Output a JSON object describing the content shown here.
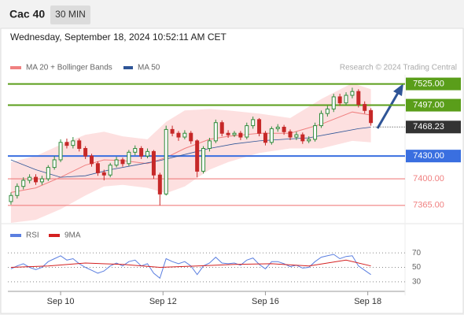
{
  "header": {
    "symbol": "Cac 40",
    "interval": "30 MIN",
    "timestamp": "Wednesday, September 18, 2024 10:52:11 AM CET"
  },
  "chart_data": [
    {
      "type": "candlestick",
      "source": "Research © 2024 Trading Central",
      "up_color": "#2e8b3a",
      "down_color": "#c62828",
      "x": [
        0,
        1,
        2,
        3,
        4,
        5,
        6,
        7,
        8,
        9,
        10,
        11,
        12,
        13,
        14,
        15,
        16,
        17,
        18,
        19,
        20,
        21,
        22,
        23,
        24,
        25,
        26,
        27,
        28,
        29,
        30,
        31,
        32,
        33,
        34,
        35,
        36,
        37,
        38,
        39,
        40,
        41,
        42,
        43,
        44,
        45,
        46,
        47,
        48,
        49,
        50,
        51,
        52,
        53,
        54,
        55,
        56,
        57,
        58
      ],
      "open": [
        7370,
        7378,
        7390,
        7398,
        7402,
        7396,
        7400,
        7415,
        7425,
        7448,
        7444,
        7450,
        7440,
        7430,
        7420,
        7408,
        7405,
        7418,
        7425,
        7420,
        7435,
        7440,
        7430,
        7436,
        7405,
        7380,
        7465,
        7460,
        7455,
        7460,
        7450,
        7410,
        7440,
        7450,
        7474,
        7460,
        7458,
        7460,
        7455,
        7470,
        7478,
        7460,
        7448,
        7466,
        7468,
        7462,
        7455,
        7458,
        7450,
        7452,
        7470,
        7486,
        7492,
        7508,
        7500,
        7510,
        7515,
        7498,
        7490
      ],
      "high": [
        7382,
        7394,
        7402,
        7406,
        7406,
        7404,
        7418,
        7430,
        7452,
        7453,
        7455,
        7453,
        7443,
        7433,
        7423,
        7412,
        7421,
        7429,
        7428,
        7438,
        7444,
        7443,
        7440,
        7438,
        7408,
        7470,
        7470,
        7463,
        7464,
        7463,
        7452,
        7443,
        7454,
        7478,
        7477,
        7464,
        7463,
        7463,
        7474,
        7482,
        7480,
        7463,
        7469,
        7472,
        7471,
        7465,
        7462,
        7461,
        7456,
        7474,
        7490,
        7496,
        7512,
        7512,
        7514,
        7520,
        7518,
        7502,
        7493
      ],
      "low": [
        7366,
        7374,
        7386,
        7394,
        7392,
        7392,
        7397,
        7412,
        7422,
        7440,
        7440,
        7436,
        7426,
        7416,
        7404,
        7398,
        7402,
        7415,
        7416,
        7417,
        7431,
        7426,
        7427,
        7400,
        7365,
        7378,
        7456,
        7450,
        7452,
        7446,
        7402,
        7407,
        7436,
        7447,
        7456,
        7454,
        7455,
        7451,
        7452,
        7466,
        7456,
        7444,
        7445,
        7462,
        7458,
        7451,
        7451,
        7446,
        7447,
        7449,
        7467,
        7482,
        7488,
        7496,
        7497,
        7506,
        7494,
        7486,
        7470
      ],
      "close": [
        7378,
        7390,
        7398,
        7402,
        7396,
        7400,
        7415,
        7425,
        7448,
        7444,
        7450,
        7440,
        7430,
        7420,
        7408,
        7405,
        7418,
        7425,
        7420,
        7435,
        7440,
        7430,
        7436,
        7405,
        7380,
        7465,
        7460,
        7455,
        7460,
        7450,
        7410,
        7440,
        7450,
        7474,
        7460,
        7458,
        7460,
        7455,
        7470,
        7478,
        7460,
        7448,
        7466,
        7468,
        7462,
        7455,
        7458,
        7450,
        7452,
        7470,
        7486,
        7492,
        7508,
        7500,
        7510,
        7515,
        7498,
        7490,
        7474
      ],
      "xlim": [
        -0.5,
        63.5
      ],
      "xticks": [
        {
          "value": 8,
          "label": "Sep 10"
        },
        {
          "value": 24.5,
          "label": "Sep 12"
        },
        {
          "value": 41,
          "label": "Sep 16"
        },
        {
          "value": 57.5,
          "label": "Sep 18"
        }
      ],
      "ylim": [
        7343,
        7537
      ],
      "bands": {
        "name": "MA 20 + Bollinger Bands",
        "color": "#f08080",
        "fill": "#fde0e0",
        "x": [
          0,
          4,
          8,
          12,
          15,
          18,
          22,
          25,
          28,
          32,
          35,
          40,
          45,
          50,
          55,
          58
        ],
        "upper": [
          7422,
          7430,
          7445,
          7458,
          7462,
          7456,
          7452,
          7475,
          7490,
          7492,
          7490,
          7486,
          7480,
          7505,
          7526,
          7518
        ],
        "middle": [
          7382,
          7388,
          7402,
          7418,
          7425,
          7424,
          7420,
          7428,
          7440,
          7452,
          7456,
          7460,
          7460,
          7472,
          7488,
          7484
        ],
        "lower": [
          7342,
          7346,
          7360,
          7378,
          7390,
          7392,
          7388,
          7381,
          7390,
          7412,
          7422,
          7434,
          7440,
          7440,
          7450,
          7448
        ]
      },
      "series": [
        {
          "name": "MA 50",
          "color": "#2f5597",
          "x": [
            0,
            4,
            8,
            12,
            16,
            20,
            24,
            28,
            32,
            36,
            40,
            44,
            48,
            52,
            56,
            58
          ],
          "values": [
            7425,
            7412,
            7402,
            7404,
            7412,
            7418,
            7424,
            7432,
            7440,
            7446,
            7450,
            7452,
            7454,
            7460,
            7466,
            7468
          ]
        }
      ],
      "levels": [
        {
          "value": 7525,
          "label": "7525.00",
          "color": "#5a9e1a",
          "style": "box"
        },
        {
          "value": 7497,
          "label": "7497.00",
          "color": "#5a9e1a",
          "style": "box"
        },
        {
          "value": 7430,
          "label": "7430.00",
          "color": "#3a6fe0",
          "style": "box"
        },
        {
          "value": 7400,
          "label": "7400.00",
          "color": "#f08080",
          "style": "text"
        },
        {
          "value": 7365,
          "label": "7365.00",
          "color": "#f08080",
          "style": "text"
        }
      ],
      "last": {
        "value": 7468.23,
        "label": "7468.23",
        "color": "#333333"
      }
    },
    {
      "type": "line",
      "x": [
        0,
        1,
        2,
        3,
        4,
        5,
        6,
        7,
        8,
        9,
        10,
        11,
        12,
        13,
        14,
        15,
        16,
        17,
        18,
        19,
        20,
        21,
        22,
        23,
        24,
        25,
        26,
        27,
        28,
        29,
        30,
        31,
        32,
        33,
        34,
        35,
        36,
        37,
        38,
        39,
        40,
        41,
        42,
        43,
        44,
        45,
        46,
        47,
        48,
        49,
        50,
        51,
        52,
        53,
        54,
        55,
        56,
        57,
        58
      ],
      "xlim": [
        -0.5,
        63.5
      ],
      "ylim": [
        19,
        93
      ],
      "yticks": [
        30,
        50,
        70
      ],
      "series": [
        {
          "name": "RSI",
          "color": "#5b7fe0",
          "x": [
            0,
            1,
            2,
            3,
            4,
            5,
            6,
            7,
            8,
            9,
            10,
            11,
            12,
            13,
            14,
            15,
            16,
            17,
            18,
            19,
            20,
            21,
            22,
            23,
            24,
            25,
            26,
            27,
            28,
            29,
            30,
            31,
            32,
            33,
            34,
            35,
            36,
            37,
            38,
            39,
            40,
            41,
            42,
            43,
            44,
            45,
            46,
            47,
            48,
            49,
            50,
            51,
            52,
            53,
            54,
            55,
            56,
            57,
            58
          ],
          "values": [
            48,
            52,
            55,
            50,
            47,
            50,
            58,
            62,
            66,
            60,
            62,
            55,
            50,
            46,
            42,
            45,
            52,
            56,
            52,
            58,
            60,
            52,
            55,
            42,
            35,
            62,
            58,
            55,
            58,
            52,
            40,
            52,
            56,
            64,
            56,
            55,
            56,
            53,
            60,
            63,
            54,
            48,
            58,
            58,
            55,
            51,
            53,
            49,
            50,
            58,
            64,
            66,
            68,
            62,
            65,
            66,
            52,
            46,
            40
          ]
        },
        {
          "name": "9MA",
          "color": "#d42020",
          "x": [
            0,
            6,
            12,
            18,
            24,
            30,
            36,
            42,
            48,
            54,
            58
          ],
          "values": [
            50,
            52,
            56,
            54,
            50,
            52,
            54,
            55,
            52,
            60,
            52
          ]
        }
      ]
    }
  ]
}
